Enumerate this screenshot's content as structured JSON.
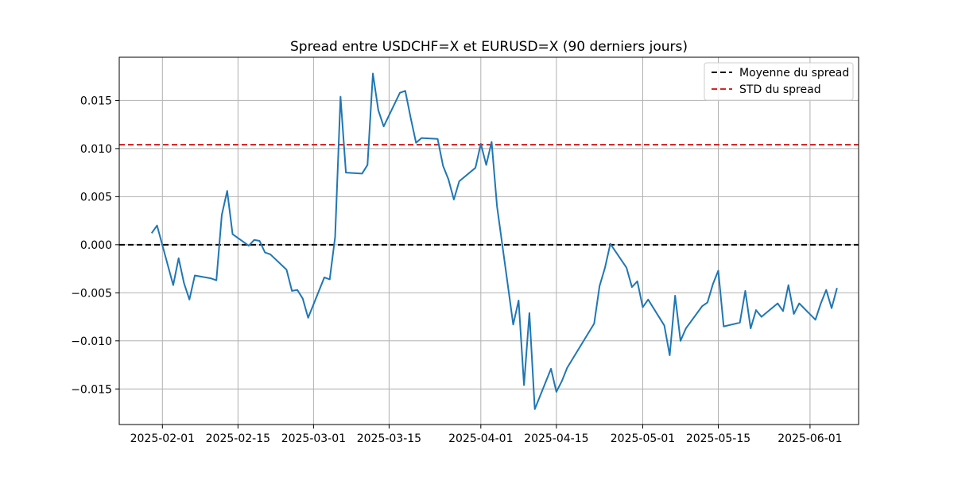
{
  "chart_data": {
    "type": "line",
    "title": "Spread entre USDCHF=X et EURUSD=X (90 derniers jours)",
    "xlabel": "",
    "ylabel": "",
    "grid": true,
    "legend_position": "top-right",
    "x_range": [
      "2025-01-24",
      "2025-06-10"
    ],
    "ylim": [
      -0.0187,
      0.0195
    ],
    "x_ticks": [
      "2025-02-01",
      "2025-02-15",
      "2025-03-01",
      "2025-03-15",
      "2025-04-01",
      "2025-04-15",
      "2025-05-01",
      "2025-05-15",
      "2025-06-01"
    ],
    "y_ticks": [
      {
        "value": 0.015,
        "label": "0.015"
      },
      {
        "value": 0.01,
        "label": "0.010"
      },
      {
        "value": 0.005,
        "label": "0.005"
      },
      {
        "value": 0.0,
        "label": "0.000"
      },
      {
        "value": -0.005,
        "label": "−0.005"
      },
      {
        "value": -0.01,
        "label": "−0.010"
      },
      {
        "value": -0.015,
        "label": "−0.015"
      }
    ],
    "reference_lines": [
      {
        "name": "Moyenne du spread",
        "value": 0.0,
        "color": "#000000"
      },
      {
        "name": "STD du spread",
        "value": 0.0104,
        "color": "#d62728"
      }
    ],
    "series": [
      {
        "color": "#1f77b4",
        "points": [
          [
            "2025-01-30",
            0.0012
          ],
          [
            "2025-01-31",
            0.002
          ],
          [
            "2025-02-03",
            -0.0042
          ],
          [
            "2025-02-04",
            -0.0014
          ],
          [
            "2025-02-05",
            -0.004
          ],
          [
            "2025-02-06",
            -0.0057
          ],
          [
            "2025-02-07",
            -0.0032
          ],
          [
            "2025-02-10",
            -0.0035
          ],
          [
            "2025-02-11",
            -0.0037
          ],
          [
            "2025-02-12",
            0.0031
          ],
          [
            "2025-02-13",
            0.0056
          ],
          [
            "2025-02-14",
            0.0011
          ],
          [
            "2025-02-17",
            -0.0001
          ],
          [
            "2025-02-18",
            0.0005
          ],
          [
            "2025-02-19",
            0.0004
          ],
          [
            "2025-02-20",
            -0.0008
          ],
          [
            "2025-02-21",
            -0.001
          ],
          [
            "2025-02-24",
            -0.0026
          ],
          [
            "2025-02-25",
            -0.0048
          ],
          [
            "2025-02-26",
            -0.0047
          ],
          [
            "2025-02-27",
            -0.0056
          ],
          [
            "2025-02-28",
            -0.0076
          ],
          [
            "2025-03-03",
            -0.0034
          ],
          [
            "2025-03-04",
            -0.0036
          ],
          [
            "2025-03-05",
            0.0008
          ],
          [
            "2025-03-06",
            0.0154
          ],
          [
            "2025-03-07",
            0.0075
          ],
          [
            "2025-03-10",
            0.0074
          ],
          [
            "2025-03-11",
            0.0083
          ],
          [
            "2025-03-12",
            0.0178
          ],
          [
            "2025-03-13",
            0.014
          ],
          [
            "2025-03-14",
            0.0123
          ],
          [
            "2025-03-17",
            0.0158
          ],
          [
            "2025-03-18",
            0.016
          ],
          [
            "2025-03-19",
            0.0132
          ],
          [
            "2025-03-20",
            0.0106
          ],
          [
            "2025-03-21",
            0.0111
          ],
          [
            "2025-03-24",
            0.011
          ],
          [
            "2025-03-25",
            0.0082
          ],
          [
            "2025-03-26",
            0.0068
          ],
          [
            "2025-03-27",
            0.0047
          ],
          [
            "2025-03-28",
            0.0066
          ],
          [
            "2025-03-31",
            0.008
          ],
          [
            "2025-04-01",
            0.0105
          ],
          [
            "2025-04-02",
            0.0083
          ],
          [
            "2025-04-03",
            0.0107
          ],
          [
            "2025-04-04",
            0.004
          ],
          [
            "2025-04-07",
            -0.0083
          ],
          [
            "2025-04-08",
            -0.0058
          ],
          [
            "2025-04-09",
            -0.0146
          ],
          [
            "2025-04-10",
            -0.0071
          ],
          [
            "2025-04-11",
            -0.0171
          ],
          [
            "2025-04-14",
            -0.0129
          ],
          [
            "2025-04-15",
            -0.0153
          ],
          [
            "2025-04-16",
            -0.0142
          ],
          [
            "2025-04-17",
            -0.0128
          ],
          [
            "2025-04-22",
            -0.0082
          ],
          [
            "2025-04-23",
            -0.0043
          ],
          [
            "2025-04-24",
            -0.0024
          ],
          [
            "2025-04-25",
            0.0001
          ],
          [
            "2025-04-28",
            -0.0024
          ],
          [
            "2025-04-29",
            -0.0044
          ],
          [
            "2025-04-30",
            -0.0038
          ],
          [
            "2025-05-01",
            -0.0065
          ],
          [
            "2025-05-02",
            -0.0057
          ],
          [
            "2025-05-05",
            -0.0084
          ],
          [
            "2025-05-06",
            -0.0115
          ],
          [
            "2025-05-07",
            -0.0053
          ],
          [
            "2025-05-08",
            -0.01
          ],
          [
            "2025-05-09",
            -0.0087
          ],
          [
            "2025-05-12",
            -0.0064
          ],
          [
            "2025-05-13",
            -0.006
          ],
          [
            "2025-05-14",
            -0.0041
          ],
          [
            "2025-05-15",
            -0.0027
          ],
          [
            "2025-05-16",
            -0.0085
          ],
          [
            "2025-05-19",
            -0.0081
          ],
          [
            "2025-05-20",
            -0.0048
          ],
          [
            "2025-05-21",
            -0.0087
          ],
          [
            "2025-05-22",
            -0.0068
          ],
          [
            "2025-05-23",
            -0.0075
          ],
          [
            "2025-05-26",
            -0.0061
          ],
          [
            "2025-05-27",
            -0.0069
          ],
          [
            "2025-05-28",
            -0.0042
          ],
          [
            "2025-05-29",
            -0.0072
          ],
          [
            "2025-05-30",
            -0.0061
          ],
          [
            "2025-06-02",
            -0.0078
          ],
          [
            "2025-06-03",
            -0.0061
          ],
          [
            "2025-06-04",
            -0.0047
          ],
          [
            "2025-06-05",
            -0.0066
          ],
          [
            "2025-06-06",
            -0.0045
          ]
        ]
      }
    ]
  }
}
